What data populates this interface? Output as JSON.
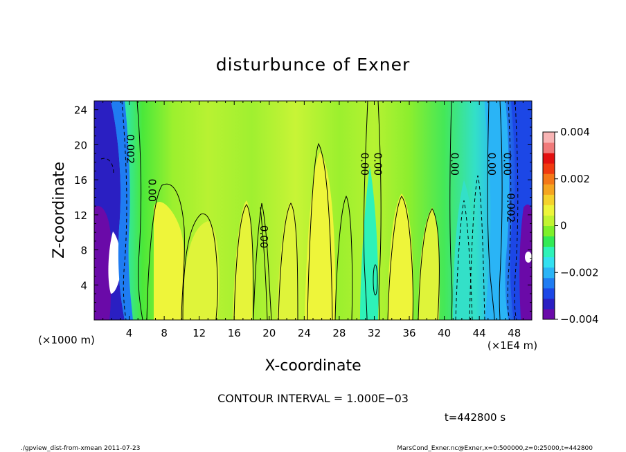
{
  "chart_data": {
    "type": "heatmap",
    "title": "disturbunce of Exner",
    "xlabel": "X-coordinate",
    "ylabel": "Z-coordinate",
    "x_unit_left": "(×1000 m)",
    "x_unit_right": "(×1E4 m)",
    "xlim": [
      0,
      50
    ],
    "ylim": [
      0,
      25
    ],
    "x_ticks": [
      4,
      8,
      12,
      16,
      20,
      24,
      28,
      32,
      36,
      40,
      44,
      48
    ],
    "x_tick_labels": [
      "4",
      "8",
      "12",
      "16",
      "20",
      "24",
      "28",
      "32",
      "36",
      "40",
      "44",
      "48"
    ],
    "y_ticks": [
      4,
      8,
      12,
      16,
      20,
      24
    ],
    "y_tick_labels": [
      "4",
      "8",
      "12",
      "16",
      "20",
      "24"
    ],
    "colorbar": {
      "range": [
        -0.004,
        0.004
      ],
      "ticks": [
        0.004,
        0.002,
        0,
        -0.002,
        -0.004
      ],
      "tick_labels": [
        "0.004",
        "0.002",
        "0",
        "−0.002",
        "−0.004"
      ],
      "colors": [
        "#6a0aa8",
        "#2a1fc2",
        "#1c47e6",
        "#1f7cf2",
        "#2ab4f6",
        "#33e0f0",
        "#2ef2b8",
        "#33ea55",
        "#7ef02a",
        "#c2f431",
        "#eef53a",
        "#f5d22c",
        "#f5a520",
        "#f47818",
        "#f03a10",
        "#e31010",
        "#f07a7a",
        "#f8b4b4"
      ]
    },
    "contour_labels": [
      {
        "text": "0.002",
        "x": 3.7,
        "y": 19.5,
        "rot": 90
      },
      {
        "text": "0.00",
        "x": 6.2,
        "y": 14.8,
        "rot": 90
      },
      {
        "text": "0.00",
        "x": 19.0,
        "y": 9.5,
        "rot": 90
      },
      {
        "text": "0.00",
        "x": 30.5,
        "y": 17.8,
        "rot": 90
      },
      {
        "text": "0.00",
        "x": 32.0,
        "y": 17.8,
        "rot": 90
      },
      {
        "text": "0.00",
        "x": 40.8,
        "y": 17.8,
        "rot": 90
      },
      {
        "text": "0.00",
        "x": 45.0,
        "y": 17.8,
        "rot": 90
      },
      {
        "text": "0.00",
        "x": 46.8,
        "y": 17.8,
        "rot": 90
      },
      {
        "text": "0.002",
        "x": 47.2,
        "y": 12.8,
        "rot": 90
      }
    ],
    "grid": false,
    "legend": "colorbar-right"
  },
  "annotations": {
    "contour_interval": "CONTOUR INTERVAL = 1.000E−03",
    "time": "t=442800  s",
    "footer_left": "./gpview_dist-from-xmean  2011-07-23",
    "footer_right": "MarsCond_Exner.nc@Exner,x=0:500000,z=0:25000,t=442800"
  }
}
